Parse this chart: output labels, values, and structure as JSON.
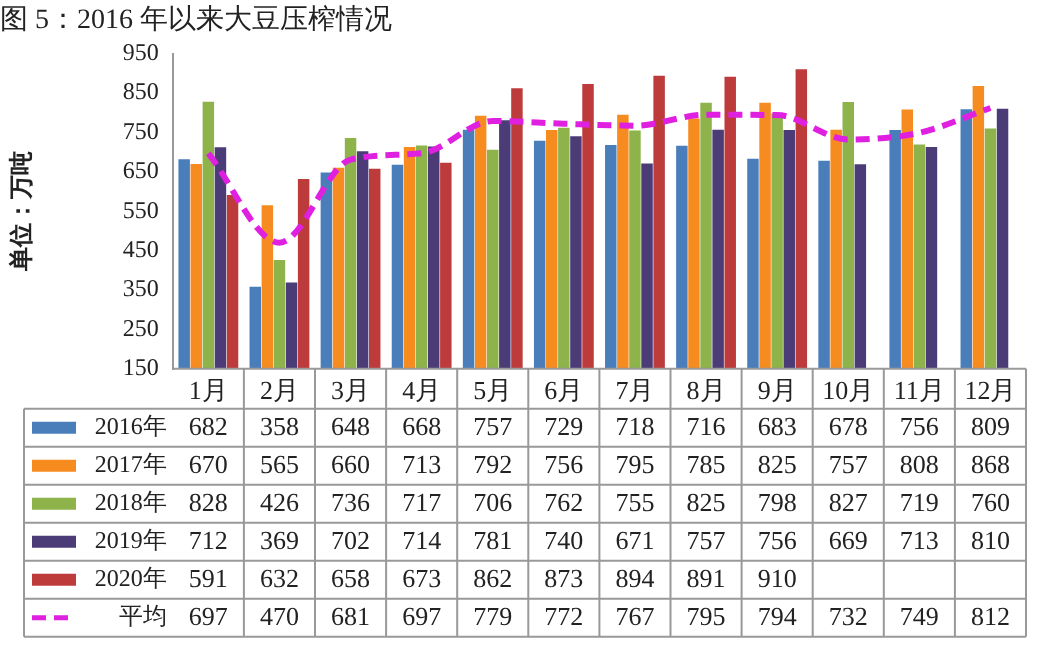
{
  "chart_data": {
    "type": "bar",
    "title": "图 5：2016 年以来大豆压榨情况",
    "ylabel": "单位：万吨",
    "categories": [
      "1月",
      "2月",
      "3月",
      "4月",
      "5月",
      "6月",
      "7月",
      "8月",
      "9月",
      "10月",
      "11月",
      "12月"
    ],
    "series": [
      {
        "name": "2016年",
        "color": "#4a7ebb",
        "values": [
          682,
          358,
          648,
          668,
          757,
          729,
          718,
          716,
          683,
          678,
          756,
          809
        ]
      },
      {
        "name": "2017年",
        "color": "#f68b1f",
        "values": [
          670,
          565,
          660,
          713,
          792,
          756,
          795,
          785,
          825,
          757,
          808,
          868
        ]
      },
      {
        "name": "2018年",
        "color": "#8db34a",
        "values": [
          828,
          426,
          736,
          717,
          706,
          762,
          755,
          825,
          798,
          827,
          719,
          760
        ]
      },
      {
        "name": "2019年",
        "color": "#4b3b77",
        "values": [
          712,
          369,
          702,
          714,
          781,
          740,
          671,
          757,
          756,
          669,
          713,
          810
        ]
      },
      {
        "name": "2020年",
        "color": "#be3b3c",
        "values": [
          591,
          632,
          658,
          673,
          862,
          873,
          894,
          891,
          910,
          null,
          null,
          null
        ]
      },
      {
        "name": "平均",
        "type": "line",
        "color": "#e020e0",
        "line_style": "dashed",
        "marker": "none",
        "values": [
          697,
          470,
          681,
          697,
          779,
          772,
          767,
          795,
          794,
          732,
          749,
          812
        ]
      }
    ],
    "ylim": [
      150,
      950
    ],
    "yticks": [
      150,
      250,
      350,
      450,
      550,
      650,
      750,
      850,
      950
    ],
    "grid": false,
    "legend": "bottom",
    "data_labels": true
  }
}
